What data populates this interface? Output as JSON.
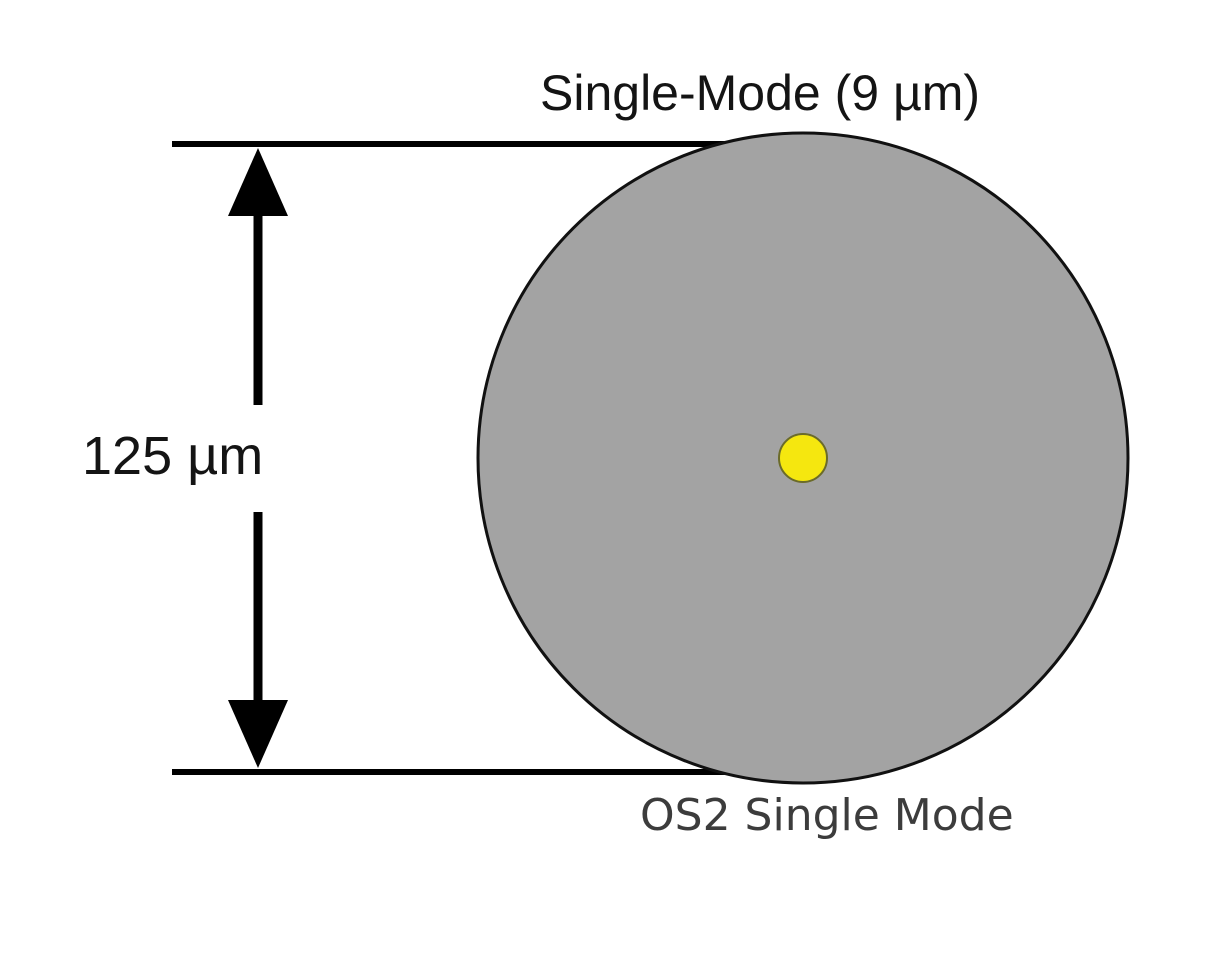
{
  "diagram": {
    "title": "Single-Mode (9 µm)",
    "dimension_label": "125 µm",
    "caption": "OS2 Single Mode",
    "colors": {
      "cladding": "#a3a3a3",
      "core": "#f5e70f",
      "line": "#000000",
      "background": "#ffffff"
    }
  }
}
